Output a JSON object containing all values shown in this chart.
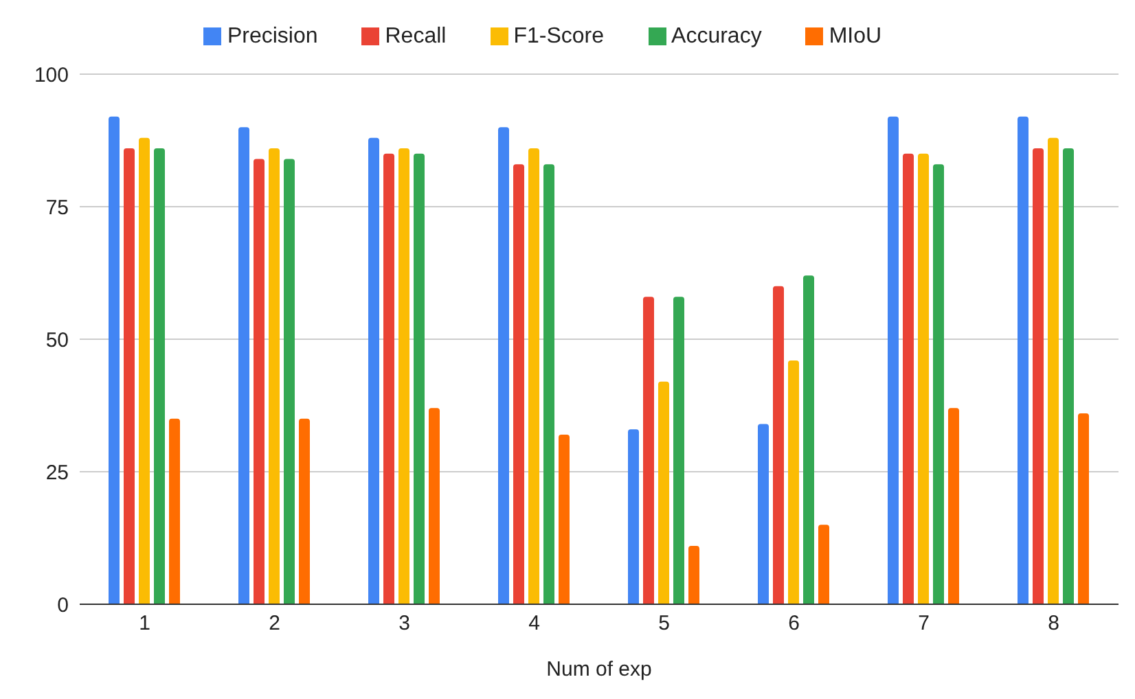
{
  "chart_data": {
    "type": "bar",
    "xlabel": "Num of exp",
    "categories": [
      "1",
      "2",
      "3",
      "4",
      "5",
      "6",
      "7",
      "8"
    ],
    "series": [
      {
        "name": "Precision",
        "color": "#4285f4",
        "values": [
          92,
          90,
          88,
          90,
          33,
          34,
          92,
          92
        ]
      },
      {
        "name": "Recall",
        "color": "#ea4335",
        "values": [
          86,
          84,
          85,
          83,
          58,
          60,
          85,
          86
        ]
      },
      {
        "name": "F1-Score",
        "color": "#fbbc04",
        "values": [
          88,
          86,
          86,
          86,
          42,
          46,
          85,
          88
        ]
      },
      {
        "name": "Accuracy",
        "color": "#34a853",
        "values": [
          86,
          84,
          85,
          83,
          58,
          62,
          83,
          86
        ]
      },
      {
        "name": "MIoU",
        "color": "#ff6d01",
        "values": [
          35,
          35,
          37,
          32,
          11,
          15,
          37,
          36
        ]
      }
    ],
    "ylim": [
      0,
      100
    ],
    "yticks": [
      0,
      25,
      50,
      75,
      100
    ],
    "grid": "y",
    "legend": "top"
  }
}
